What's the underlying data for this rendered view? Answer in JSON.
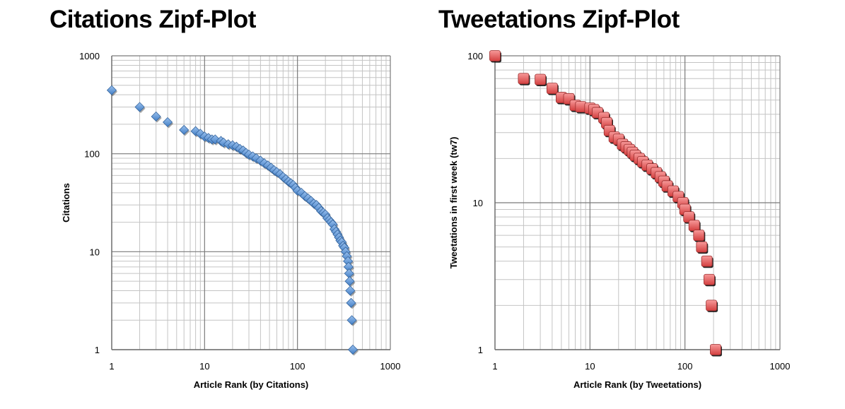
{
  "chart_data": [
    {
      "type": "scatter",
      "title": "Citations Zipf-Plot",
      "xlabel": "Article Rank (by Citations)",
      "ylabel": "Citations",
      "xscale": "log",
      "yscale": "log",
      "xlim": [
        1,
        1000
      ],
      "ylim": [
        1,
        1000
      ],
      "xticks": [
        "1",
        "10",
        "100",
        "1000"
      ],
      "yticks": [
        "1",
        "10",
        "100",
        "1000"
      ],
      "grid": true,
      "legend": "none",
      "marker": "diamond",
      "color": "#4a8fe0",
      "points": [
        [
          1,
          445
        ],
        [
          2,
          300
        ],
        [
          3,
          240
        ],
        [
          4,
          210
        ],
        [
          6,
          175
        ],
        [
          8,
          170
        ],
        [
          9,
          160
        ],
        [
          10,
          150
        ],
        [
          11,
          145
        ],
        [
          12,
          140
        ],
        [
          13,
          140
        ],
        [
          15,
          135
        ],
        [
          16,
          130
        ],
        [
          18,
          125
        ],
        [
          20,
          122
        ],
        [
          22,
          118
        ],
        [
          24,
          112
        ],
        [
          26,
          108
        ],
        [
          28,
          102
        ],
        [
          30,
          98
        ],
        [
          33,
          94
        ],
        [
          36,
          90
        ],
        [
          40,
          85
        ],
        [
          44,
          80
        ],
        [
          48,
          76
        ],
        [
          52,
          72
        ],
        [
          56,
          68
        ],
        [
          60,
          65
        ],
        [
          65,
          62
        ],
        [
          70,
          58
        ],
        [
          75,
          55
        ],
        [
          80,
          52
        ],
        [
          85,
          50
        ],
        [
          90,
          48
        ],
        [
          95,
          45
        ],
        [
          100,
          42
        ],
        [
          110,
          40
        ],
        [
          120,
          37
        ],
        [
          130,
          35
        ],
        [
          140,
          33
        ],
        [
          150,
          31
        ],
        [
          160,
          30
        ],
        [
          170,
          28
        ],
        [
          180,
          26
        ],
        [
          190,
          25
        ],
        [
          200,
          24
        ],
        [
          210,
          22
        ],
        [
          220,
          21
        ],
        [
          230,
          20
        ],
        [
          240,
          19
        ],
        [
          250,
          17
        ],
        [
          260,
          16
        ],
        [
          270,
          15
        ],
        [
          280,
          14
        ],
        [
          290,
          13
        ],
        [
          300,
          12.5
        ],
        [
          310,
          11.5
        ],
        [
          320,
          11
        ],
        [
          330,
          10
        ],
        [
          340,
          9
        ],
        [
          350,
          8
        ],
        [
          355,
          7
        ],
        [
          360,
          6
        ],
        [
          365,
          5
        ],
        [
          370,
          4
        ],
        [
          378,
          3
        ],
        [
          385,
          2
        ],
        [
          395,
          1
        ]
      ]
    },
    {
      "type": "scatter",
      "title": "Tweetations Zipf-Plot",
      "xlabel": "Article Rank (by Tweetations)",
      "ylabel": "Tweetations in first week (tw7)",
      "xscale": "log",
      "yscale": "log",
      "xlim": [
        1,
        1000
      ],
      "ylim": [
        1,
        100
      ],
      "xticks": [
        "1",
        "10",
        "100",
        "1000"
      ],
      "yticks": [
        "1",
        "10",
        "100"
      ],
      "grid": true,
      "legend": "none",
      "marker": "square",
      "color": "#f04848",
      "points": [
        [
          1,
          100
        ],
        [
          2,
          70
        ],
        [
          3,
          69
        ],
        [
          4,
          60
        ],
        [
          5,
          52
        ],
        [
          6,
          51
        ],
        [
          7,
          46
        ],
        [
          8,
          45
        ],
        [
          10,
          44
        ],
        [
          11,
          43
        ],
        [
          12,
          41
        ],
        [
          14,
          38
        ],
        [
          15,
          35
        ],
        [
          16,
          31
        ],
        [
          18,
          28
        ],
        [
          20,
          27
        ],
        [
          22,
          25
        ],
        [
          24,
          24
        ],
        [
          26,
          23
        ],
        [
          28,
          22
        ],
        [
          30,
          21
        ],
        [
          33,
          20
        ],
        [
          36,
          19
        ],
        [
          40,
          18
        ],
        [
          45,
          17
        ],
        [
          50,
          16
        ],
        [
          55,
          15
        ],
        [
          60,
          14
        ],
        [
          65,
          13
        ],
        [
          75,
          12
        ],
        [
          85,
          11
        ],
        [
          95,
          10
        ],
        [
          100,
          9
        ],
        [
          110,
          8
        ],
        [
          125,
          7
        ],
        [
          140,
          6
        ],
        [
          150,
          5
        ],
        [
          170,
          4
        ],
        [
          180,
          3
        ],
        [
          190,
          2
        ],
        [
          210,
          1
        ]
      ]
    }
  ]
}
